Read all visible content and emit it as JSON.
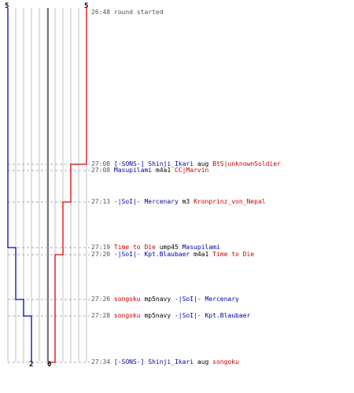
{
  "colors": {
    "team_blue": "#0000cc",
    "team_red": "#dd0000",
    "grid": "#c0c0c0",
    "dash": "#aaaaaa",
    "center": "#777777"
  },
  "scores": {
    "blue_start": "5",
    "red_start": "5",
    "blue_end": "2",
    "red_end": "0"
  },
  "events": [
    {
      "time": "26:48",
      "parts": [
        {
          "text": "round started",
          "team": "gray"
        }
      ]
    },
    {
      "time": "27:08",
      "parts": [
        {
          "text": "[-SONS-] Shinji_Ikari",
          "team": "blue"
        },
        {
          "text": " aug ",
          "team": "none"
        },
        {
          "text": "BtS|unknownSoldier",
          "team": "red"
        }
      ]
    },
    {
      "time": "27:08",
      "parts": [
        {
          "text": "Masupilami",
          "team": "blue"
        },
        {
          "text": " m4a1 ",
          "team": "none"
        },
        {
          "text": "CC|Marvin",
          "team": "red"
        }
      ]
    },
    {
      "time": "27:13",
      "parts": [
        {
          "text": "-|SoI|- Mercenary",
          "team": "blue"
        },
        {
          "text": " m3 ",
          "team": "none"
        },
        {
          "text": "Kronprinz_von_Nepal",
          "team": "red"
        }
      ]
    },
    {
      "time": "27:19",
      "parts": [
        {
          "text": "Time to Die",
          "team": "red"
        },
        {
          "text": " ump45 ",
          "team": "none"
        },
        {
          "text": "Masupilami",
          "team": "blue"
        }
      ]
    },
    {
      "time": "27:20",
      "parts": [
        {
          "text": "-|SoI|- Kpt.Blaubaer",
          "team": "blue"
        },
        {
          "text": " m4a1 ",
          "team": "none"
        },
        {
          "text": "Time to Die",
          "team": "red"
        }
      ]
    },
    {
      "time": "27:26",
      "parts": [
        {
          "text": "songoku",
          "team": "red"
        },
        {
          "text": " mp5navy ",
          "team": "none"
        },
        {
          "text": "-|SoI|- Mercenary",
          "team": "blue"
        }
      ]
    },
    {
      "time": "27:28",
      "parts": [
        {
          "text": "songoku",
          "team": "red"
        },
        {
          "text": " mp5navy ",
          "team": "none"
        },
        {
          "text": "-|SoI|- Kpt.Blaubaer",
          "team": "blue"
        }
      ]
    },
    {
      "time": "27:34",
      "parts": [
        {
          "text": "[-SONS-] Shinji_Ikari",
          "team": "blue"
        },
        {
          "text": " aug ",
          "team": "none"
        },
        {
          "text": "songoku",
          "team": "red"
        }
      ]
    }
  ]
}
